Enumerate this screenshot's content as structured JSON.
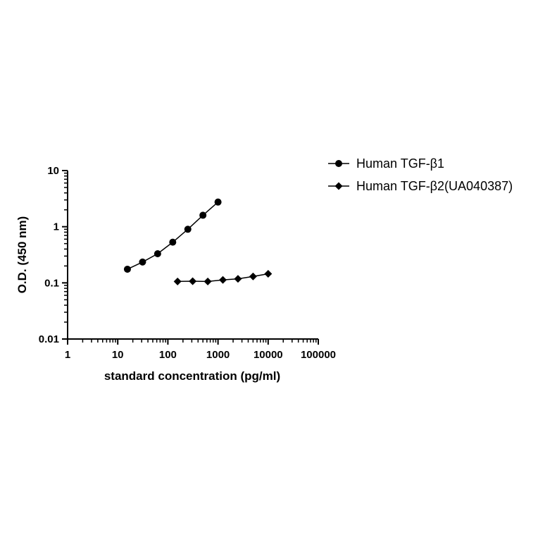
{
  "chart_data": {
    "type": "scatter",
    "xlabel": "standard concentration (pg/ml)",
    "ylabel": "O.D. (450 nm)",
    "x_scale": "log",
    "y_scale": "log",
    "xlim": [
      1,
      100000
    ],
    "ylim": [
      0.01,
      10
    ],
    "x_tick_labels": [
      "1",
      "10",
      "100",
      "1000",
      "10000",
      "100000"
    ],
    "y_tick_labels": [
      "0.01",
      "0.1",
      "1",
      "10"
    ],
    "grid": false,
    "legend_position": "top-right",
    "series": [
      {
        "name": "Human TGF-β1",
        "marker": "circle",
        "color": "#000000",
        "x": [
          15.6,
          31.25,
          62.5,
          125,
          250,
          500,
          1000
        ],
        "y": [
          0.175,
          0.235,
          0.33,
          0.53,
          0.9,
          1.6,
          2.75
        ]
      },
      {
        "name": "Human TGF-β2(UA040387)",
        "marker": "diamond",
        "color": "#000000",
        "x": [
          156,
          312,
          625,
          1250,
          2500,
          5000,
          10000
        ],
        "y": [
          0.106,
          0.107,
          0.106,
          0.113,
          0.118,
          0.13,
          0.145
        ]
      }
    ]
  }
}
